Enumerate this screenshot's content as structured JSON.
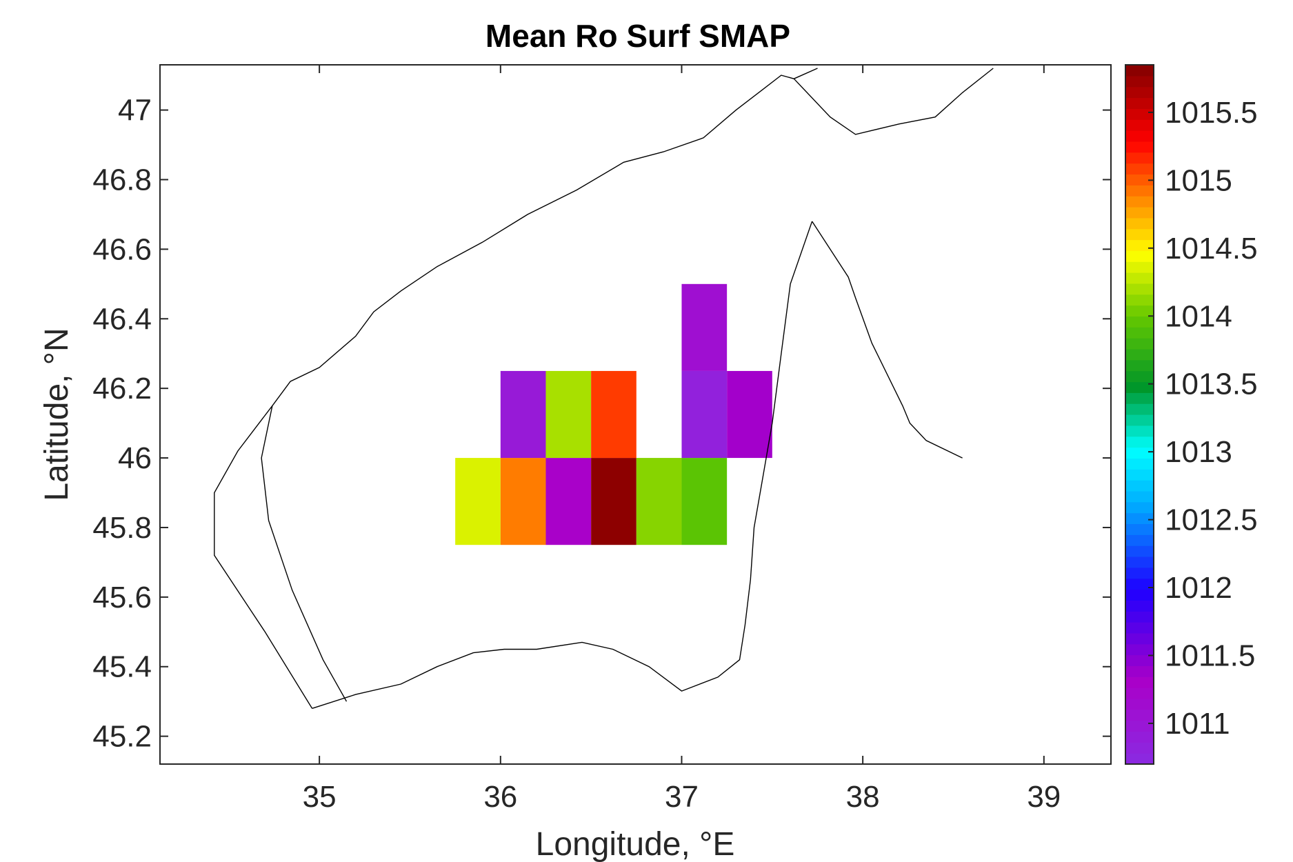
{
  "chart_data": {
    "type": "heatmap",
    "title": "Mean Ro Surf SMAP",
    "xlabel": "Longitude, °E",
    "ylabel": "Latitude, °N",
    "xlim": [
      34.12,
      39.37
    ],
    "ylim": [
      45.12,
      47.13
    ],
    "xticks": [
      {
        "value": 35,
        "label": "35"
      },
      {
        "value": 36,
        "label": "36"
      },
      {
        "value": 37,
        "label": "37"
      },
      {
        "value": 38,
        "label": "38"
      },
      {
        "value": 39,
        "label": "39"
      }
    ],
    "yticks": [
      {
        "value": 45.2,
        "label": "45.2"
      },
      {
        "value": 45.4,
        "label": "45.4"
      },
      {
        "value": 45.6,
        "label": "45.6"
      },
      {
        "value": 45.8,
        "label": "45.8"
      },
      {
        "value": 46,
        "label": "46"
      },
      {
        "value": 46.2,
        "label": "46.2"
      },
      {
        "value": 46.4,
        "label": "46.4"
      },
      {
        "value": 46.6,
        "label": "46.6"
      },
      {
        "value": 46.8,
        "label": "46.8"
      },
      {
        "value": 47,
        "label": "47"
      }
    ],
    "cell_size": [
      0.25,
      0.25
    ],
    "cells": [
      {
        "lon": 35.75,
        "lat": 45.75,
        "value": 1014.35
      },
      {
        "lon": 36.0,
        "lat": 45.75,
        "value": 1014.9
      },
      {
        "lon": 36.25,
        "lat": 45.75,
        "value": 1011.3
      },
      {
        "lon": 36.5,
        "lat": 45.75,
        "value": 1015.8
      },
      {
        "lon": 36.75,
        "lat": 45.75,
        "value": 1014.1
      },
      {
        "lon": 37.0,
        "lat": 45.75,
        "value": 1013.95
      },
      {
        "lon": 36.0,
        "lat": 46.0,
        "value": 1010.95
      },
      {
        "lon": 36.25,
        "lat": 46.0,
        "value": 1014.2
      },
      {
        "lon": 36.5,
        "lat": 46.0,
        "value": 1015.1
      },
      {
        "lon": 37.0,
        "lat": 46.0,
        "value": 1010.85
      },
      {
        "lon": 37.25,
        "lat": 46.0,
        "value": 1011.35
      },
      {
        "lon": 37.0,
        "lat": 46.25,
        "value": 1011.1
      }
    ],
    "colorbar": {
      "range": [
        1010.7,
        1015.85
      ],
      "ticks": [
        {
          "value": 1011,
          "label": "1011"
        },
        {
          "value": 1011.5,
          "label": "1011.5"
        },
        {
          "value": 1012,
          "label": "1012"
        },
        {
          "value": 1012.5,
          "label": "1012.5"
        },
        {
          "value": 1013,
          "label": "1013"
        },
        {
          "value": 1013.5,
          "label": "1013.5"
        },
        {
          "value": 1014,
          "label": "1014"
        },
        {
          "value": 1014.5,
          "label": "1014.5"
        },
        {
          "value": 1015,
          "label": "1015"
        },
        {
          "value": 1015.5,
          "label": "1015.5"
        }
      ],
      "colormap": "jet-like (violet → blue → cyan → green → yellow → red → dark red)"
    },
    "coastline": {
      "color": "#000000",
      "segments": [
        [
          [
            34.96,
            45.28
          ],
          [
            34.7,
            45.5
          ],
          [
            34.42,
            45.72
          ],
          [
            34.42,
            45.9
          ],
          [
            34.55,
            46.02
          ],
          [
            34.74,
            46.15
          ],
          [
            34.84,
            46.22
          ],
          [
            35.0,
            46.26
          ],
          [
            35.2,
            46.35
          ],
          [
            35.3,
            46.42
          ],
          [
            35.45,
            46.48
          ],
          [
            35.65,
            46.55
          ],
          [
            35.9,
            46.62
          ],
          [
            36.15,
            46.7
          ],
          [
            36.42,
            46.77
          ],
          [
            36.68,
            46.85
          ],
          [
            36.9,
            46.88
          ],
          [
            37.12,
            46.92
          ],
          [
            37.3,
            47.0
          ],
          [
            37.45,
            47.06
          ],
          [
            37.55,
            47.1
          ],
          [
            37.62,
            47.09
          ],
          [
            37.75,
            47.12
          ]
        ],
        [
          [
            37.62,
            47.09
          ],
          [
            37.82,
            46.98
          ],
          [
            37.96,
            46.93
          ],
          [
            38.2,
            46.96
          ],
          [
            38.4,
            46.98
          ],
          [
            38.55,
            47.05
          ],
          [
            38.72,
            47.12
          ]
        ],
        [
          [
            37.72,
            46.68
          ],
          [
            37.92,
            46.52
          ],
          [
            37.96,
            46.46
          ],
          [
            38.05,
            46.33
          ],
          [
            38.22,
            46.15
          ],
          [
            38.26,
            46.1
          ],
          [
            38.35,
            46.05
          ],
          [
            38.55,
            46.0
          ]
        ],
        [
          [
            37.72,
            46.68
          ],
          [
            37.6,
            46.5
          ],
          [
            37.55,
            46.3
          ],
          [
            37.5,
            46.1
          ],
          [
            37.45,
            45.95
          ],
          [
            37.4,
            45.8
          ],
          [
            37.38,
            45.65
          ],
          [
            37.35,
            45.52
          ],
          [
            37.32,
            45.42
          ],
          [
            37.2,
            45.37
          ],
          [
            37.0,
            45.33
          ],
          [
            36.82,
            45.4
          ],
          [
            36.62,
            45.45
          ],
          [
            36.45,
            45.47
          ],
          [
            36.2,
            45.45
          ],
          [
            36.02,
            45.45
          ],
          [
            35.85,
            45.44
          ],
          [
            35.65,
            45.4
          ],
          [
            35.45,
            45.35
          ],
          [
            35.2,
            45.32
          ],
          [
            34.96,
            45.28
          ]
        ],
        [
          [
            34.74,
            46.15
          ],
          [
            34.68,
            46.0
          ],
          [
            34.72,
            45.82
          ],
          [
            34.85,
            45.62
          ],
          [
            35.02,
            45.42
          ],
          [
            35.15,
            45.3
          ]
        ]
      ]
    }
  }
}
